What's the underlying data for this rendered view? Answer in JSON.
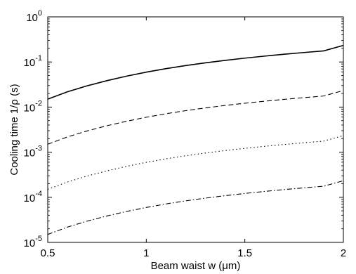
{
  "chart_data": {
    "type": "line",
    "title": "",
    "xlabel": "Beam waist w (μm)",
    "ylabel": "Cooling time 1/ρ  (s)",
    "xscale": "linear",
    "yscale": "log",
    "xlim": [
      0.5,
      2
    ],
    "ylim": [
      1e-05,
      1
    ],
    "grid": false,
    "legend": "none",
    "x_ticks": [
      0.5,
      1,
      1.5,
      2
    ],
    "x_tick_labels": [
      "0.5",
      "1",
      "1.5",
      "2"
    ],
    "y_ticks": [
      1e-05,
      0.0001,
      0.001,
      0.01,
      0.1,
      1
    ],
    "y_tick_labels": [
      {
        "base": "10",
        "exp": "-5"
      },
      {
        "base": "10",
        "exp": "-4"
      },
      {
        "base": "10",
        "exp": "-3"
      },
      {
        "base": "10",
        "exp": "-2"
      },
      {
        "base": "10",
        "exp": "-1"
      },
      {
        "base": "10",
        "exp": "0"
      }
    ],
    "x": [
      0.5,
      0.6,
      0.7,
      0.8,
      0.9,
      1.0,
      1.1,
      1.2,
      1.3,
      1.4,
      1.5,
      1.6,
      1.7,
      1.8,
      1.9,
      2.0
    ],
    "series": [
      {
        "style": "solid",
        "values": [
          0.015,
          0.0218,
          0.0296,
          0.0385,
          0.0485,
          0.0595,
          0.0712,
          0.0833,
          0.0958,
          0.1086,
          0.1216,
          0.1348,
          0.1483,
          0.162,
          0.176,
          0.233
        ]
      },
      {
        "style": "dashed",
        "values": [
          0.0015,
          0.00218,
          0.00296,
          0.00385,
          0.00485,
          0.00595,
          0.00712,
          0.00833,
          0.00958,
          0.01086,
          0.01216,
          0.01348,
          0.01483,
          0.0162,
          0.0176,
          0.0233
        ]
      },
      {
        "style": "dotted",
        "values": [
          0.00015,
          0.000218,
          0.000296,
          0.000385,
          0.000485,
          0.000595,
          0.000712,
          0.000833,
          0.000958,
          0.001086,
          0.001216,
          0.001348,
          0.001483,
          0.00162,
          0.00176,
          0.00233
        ]
      },
      {
        "style": "dashdot",
        "values": [
          1.5e-05,
          2.18e-05,
          2.96e-05,
          3.85e-05,
          4.85e-05,
          5.95e-05,
          7.12e-05,
          8.33e-05,
          9.58e-05,
          0.0001086,
          0.0001216,
          0.0001348,
          0.0001483,
          0.000162,
          0.000176,
          0.000233
        ]
      }
    ]
  }
}
